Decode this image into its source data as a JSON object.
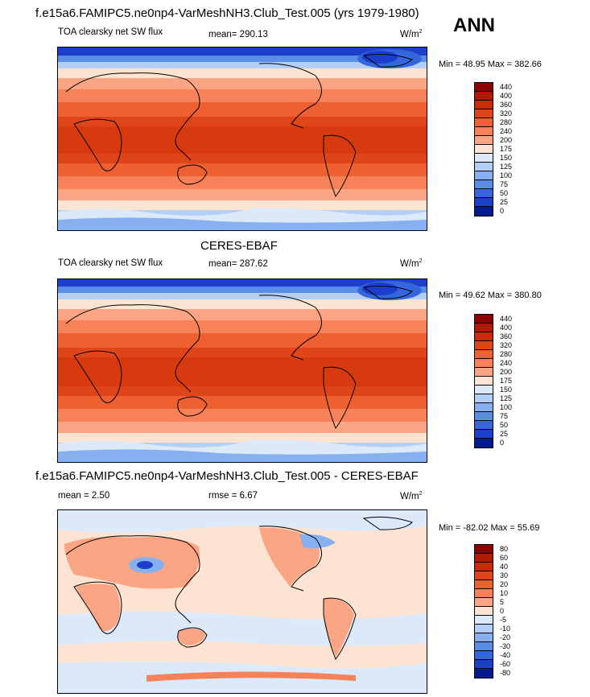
{
  "top": {
    "title": "f.e15a6.FAMIPC5.ne0np4-VarMeshNH3.Club_Test.005 (yrs 1979-1980)",
    "season": "ANN",
    "variable": "TOA clearsky net SW flux",
    "mean_label": "mean= 290.13",
    "units": "W/m",
    "units_exp": "2",
    "minmax": "Min =  48.95 Max = 382.66"
  },
  "middle": {
    "title": "CERES-EBAF",
    "variable": "TOA clearsky net SW flux",
    "mean_label": "mean= 287.62",
    "units": "W/m",
    "units_exp": "2",
    "minmax": "Min =  49.62 Max = 380.80"
  },
  "bottom": {
    "title": "f.e15a6.FAMIPC5.ne0np4-VarMeshNH3.Club_Test.005 - CERES-EBAF",
    "mean_label": "mean =   2.50",
    "rmse_label": "rmse =   6.67",
    "units": "W/m",
    "units_exp": "2",
    "minmax": "Min = -82.02 Max =  55.69"
  },
  "colorbar_abs": {
    "labels": [
      "440",
      "400",
      "360",
      "320",
      "280",
      "240",
      "200",
      "175",
      "150",
      "125",
      "100",
      "75",
      "50",
      "25",
      "0"
    ],
    "colors": [
      "#8b0000",
      "#b01a00",
      "#cc2a05",
      "#e0451a",
      "#ee6030",
      "#f7825a",
      "#fba585",
      "#fde3d2",
      "#dce9fb",
      "#b4cff6",
      "#86b0ef",
      "#5a8ee6",
      "#3566dc",
      "#1c3fcb",
      "#001a8f"
    ]
  },
  "colorbar_diff": {
    "labels": [
      "80",
      "60",
      "40",
      "30",
      "20",
      "10",
      "5",
      "0",
      "-5",
      "-10",
      "-20",
      "-30",
      "-40",
      "-60",
      "-80"
    ],
    "colors": [
      "#8b0000",
      "#b01a00",
      "#cc2a05",
      "#e0451a",
      "#ee6030",
      "#f7825a",
      "#fba585",
      "#fde3d2",
      "#dce9fb",
      "#b4cff6",
      "#86b0ef",
      "#5a8ee6",
      "#3566dc",
      "#1c3fcb",
      "#001a8f"
    ]
  },
  "icons": {
    "map_top": "world-map-icon",
    "map_middle": "world-map-icon",
    "map_bottom": "world-map-diff-icon"
  }
}
